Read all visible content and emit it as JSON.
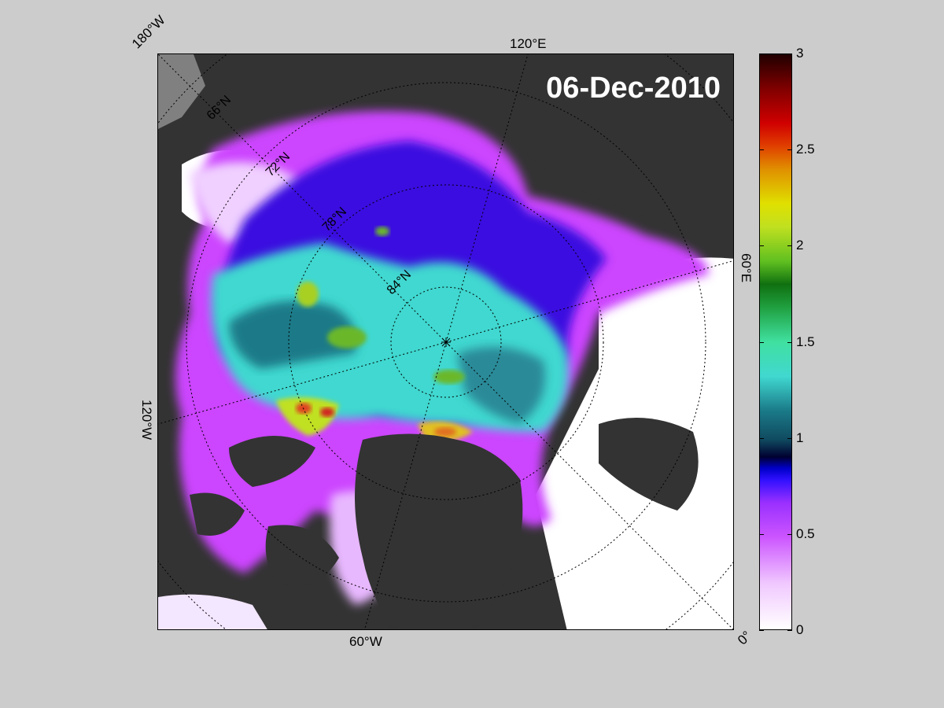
{
  "map": {
    "date": "06-Dec-2010",
    "lon_labels": {
      "w180": "180°W",
      "e120": "120°E",
      "e60": "60°E",
      "w120": "120°W",
      "w60": "60°W",
      "e0": "0°"
    },
    "lat_labels": {
      "n66": "66°N",
      "n72": "72°N",
      "n78": "78°N",
      "n84": "84°N"
    },
    "colors": {
      "land": "#333333",
      "open_water": "#ffffff",
      "no_data": "#808080"
    }
  },
  "colorbar": {
    "min": 0,
    "max": 3,
    "ticks": [
      "0",
      "0.5",
      "1",
      "1.5",
      "2",
      "2.5",
      "3"
    ]
  }
}
